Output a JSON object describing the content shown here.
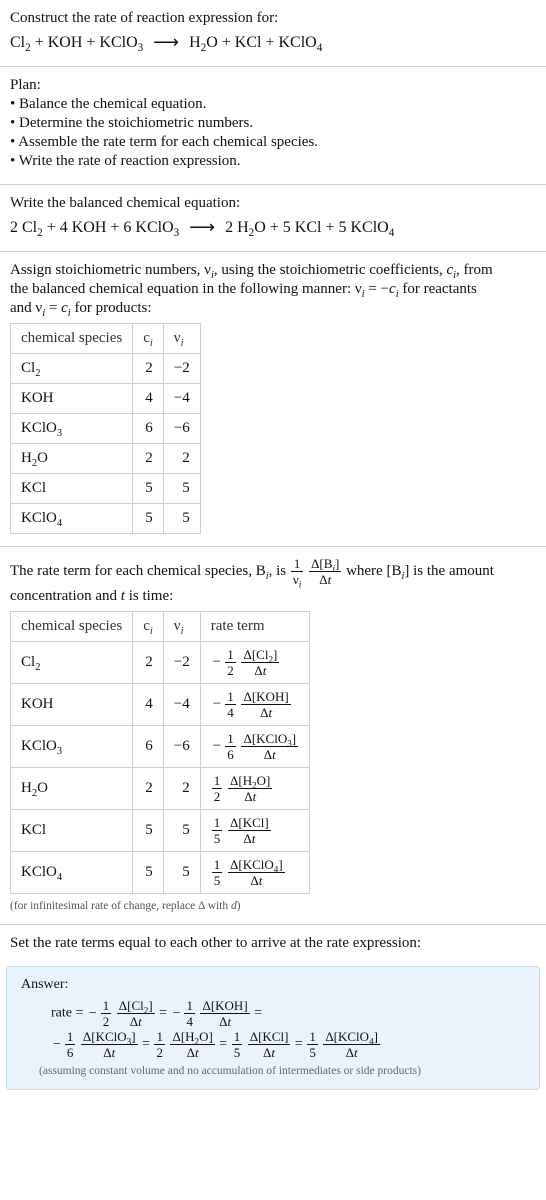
{
  "section1": {
    "title": "Construct the rate of reaction expression for:",
    "equation_lhs": "Cl<sub>2</sub> + KOH + KClO<sub>3</sub>",
    "equation_rhs": "H<sub>2</sub>O + KCl + KClO<sub>4</sub>",
    "arrow": "⟶"
  },
  "plan": {
    "heading": "Plan:",
    "bullets": [
      "• Balance the chemical equation.",
      "• Determine the stoichiometric numbers.",
      "• Assemble the rate term for each chemical species.",
      "• Write the rate of reaction expression."
    ]
  },
  "balanced": {
    "title": "Write the balanced chemical equation:",
    "lhs": "2 Cl<sub>2</sub> + 4 KOH + 6 KClO<sub>3</sub>",
    "rhs": "2 H<sub>2</sub>O + 5 KCl + 5 KClO<sub>4</sub>",
    "arrow": "⟶"
  },
  "assign": {
    "intro1": "Assign stoichiometric numbers, ν<sub><i>i</i></sub>, using the stoichiometric coefficients, <i>c<sub>i</sub></i>, from",
    "intro2": "the balanced chemical equation in the following manner: ν<sub><i>i</i></sub> = −<i>c<sub>i</sub></i> for reactants",
    "intro3": "and ν<sub><i>i</i></sub> = <i>c<sub>i</sub></i> for products:",
    "headers": {
      "sp": "chemical species",
      "ci": "c<sub><i>i</i></sub>",
      "vi": "ν<sub><i>i</i></sub>"
    },
    "rows": [
      {
        "sp": "Cl<sub>2</sub>",
        "ci": "2",
        "vi": "−2"
      },
      {
        "sp": "KOH",
        "ci": "4",
        "vi": "−4"
      },
      {
        "sp": "KClO<sub>3</sub>",
        "ci": "6",
        "vi": "−6"
      },
      {
        "sp": "H<sub>2</sub>O",
        "ci": "2",
        "vi": "2"
      },
      {
        "sp": "KCl",
        "ci": "5",
        "vi": "5"
      },
      {
        "sp": "KClO<sub>4</sub>",
        "ci": "5",
        "vi": "5"
      }
    ]
  },
  "rateterm": {
    "intro1_a": "The rate term for each chemical species, B<sub><i>i</i></sub>, is ",
    "frac1_num": "1",
    "frac1_den": "ν<sub><i>i</i></sub>",
    "frac2_num": "Δ[B<sub><i>i</i></sub>]",
    "frac2_den": "Δ<i>t</i>",
    "intro1_b": " where [B<sub><i>i</i></sub>] is the amount",
    "intro2": "concentration and <i>t</i> is time:",
    "headers": {
      "sp": "chemical species",
      "ci": "c<sub><i>i</i></sub>",
      "vi": "ν<sub><i>i</i></sub>",
      "rt": "rate term"
    },
    "rows": [
      {
        "sp": "Cl<sub>2</sub>",
        "ci": "2",
        "vi": "−2",
        "sign": "−",
        "coef_num": "1",
        "coef_den": "2",
        "dnum": "Δ[Cl<sub>2</sub>]",
        "dden": "Δ<i>t</i>"
      },
      {
        "sp": "KOH",
        "ci": "4",
        "vi": "−4",
        "sign": "−",
        "coef_num": "1",
        "coef_den": "4",
        "dnum": "Δ[KOH]",
        "dden": "Δ<i>t</i>"
      },
      {
        "sp": "KClO<sub>3</sub>",
        "ci": "6",
        "vi": "−6",
        "sign": "−",
        "coef_num": "1",
        "coef_den": "6",
        "dnum": "Δ[KClO<sub>3</sub>]",
        "dden": "Δ<i>t</i>"
      },
      {
        "sp": "H<sub>2</sub>O",
        "ci": "2",
        "vi": "2",
        "sign": "",
        "coef_num": "1",
        "coef_den": "2",
        "dnum": "Δ[H<sub>2</sub>O]",
        "dden": "Δ<i>t</i>"
      },
      {
        "sp": "KCl",
        "ci": "5",
        "vi": "5",
        "sign": "",
        "coef_num": "1",
        "coef_den": "5",
        "dnum": "Δ[KCl]",
        "dden": "Δ<i>t</i>"
      },
      {
        "sp": "KClO<sub>4</sub>",
        "ci": "5",
        "vi": "5",
        "sign": "",
        "coef_num": "1",
        "coef_den": "5",
        "dnum": "Δ[KClO<sub>4</sub>]",
        "dden": "Δ<i>t</i>"
      }
    ],
    "note": "(for infinitesimal rate of change, replace Δ with <i>d</i>)"
  },
  "final": {
    "intro": "Set the rate terms equal to each other to arrive at the rate expression:",
    "label": "Answer:",
    "r1": {
      "pre": "rate = ",
      "terms": [
        {
          "sign": "−",
          "cn": "1",
          "cd": "2",
          "dn": "Δ[Cl<sub>2</sub>]",
          "dd": "Δ<i>t</i>"
        },
        {
          "eq": " = ",
          "sign": "−",
          "cn": "1",
          "cd": "4",
          "dn": "Δ[KOH]",
          "dd": "Δ<i>t</i>"
        }
      ],
      "tail": " ="
    },
    "r2": {
      "pre": "",
      "terms": [
        {
          "sign": "−",
          "cn": "1",
          "cd": "6",
          "dn": "Δ[KClO<sub>3</sub>]",
          "dd": "Δ<i>t</i>"
        },
        {
          "eq": " = ",
          "sign": "",
          "cn": "1",
          "cd": "2",
          "dn": "Δ[H<sub>2</sub>O]",
          "dd": "Δ<i>t</i>"
        },
        {
          "eq": " = ",
          "sign": "",
          "cn": "1",
          "cd": "5",
          "dn": "Δ[KCl]",
          "dd": "Δ<i>t</i>"
        },
        {
          "eq": " = ",
          "sign": "",
          "cn": "1",
          "cd": "5",
          "dn": "Δ[KClO<sub>4</sub>]",
          "dd": "Δ<i>t</i>"
        }
      ],
      "tail": ""
    },
    "note": "(assuming constant volume and no accumulation of intermediates or side products)"
  },
  "style": {
    "rule_color": "#d0d0d0",
    "answer_bg": "#eaf3fb",
    "answer_border": "#c7dceb",
    "note_color": "#555"
  }
}
